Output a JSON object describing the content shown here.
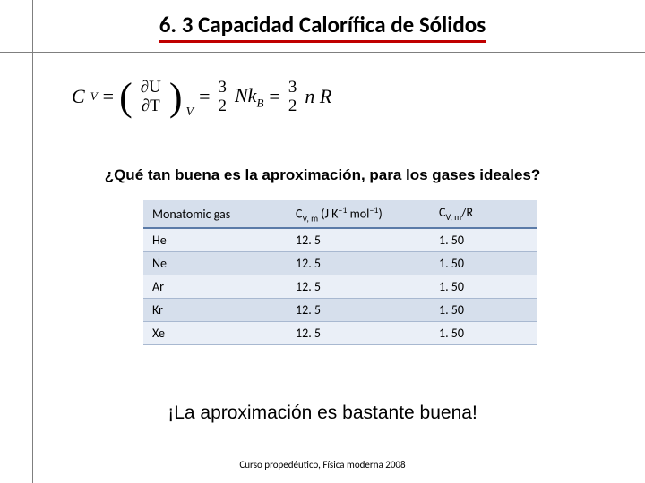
{
  "title": "6. 3 Capacidad Calorífica de Sólidos",
  "question": "¿Qué tan buena es la aproximación, para los gases ideales?",
  "exclamation": "¡La aproximación es bastante buena!",
  "footer": "Curso propedéutico, Física moderna 2008",
  "formula": {
    "lhs_C": "C",
    "lhs_V": "V",
    "partial_U": "∂U",
    "partial_T": "∂T",
    "subscript_V": "V",
    "three": "3",
    "two": "2",
    "N": "N",
    "k": "k",
    "B": "B",
    "n": "n",
    "R": "R"
  },
  "table": {
    "columns": {
      "gas": "Monatomic gas",
      "cvm_prefix": "C",
      "cvm_sub": "V, m",
      "cvm_units_open": " (J K",
      "cvm_sup1": "–1",
      "cvm_mid": " mol",
      "cvm_sup2": "–1",
      "cvm_close": ")",
      "ratio_prefix": "C",
      "ratio_sub": "V, m",
      "ratio_divR": "/R"
    },
    "rows": [
      {
        "gas": "He",
        "cvm": "12. 5",
        "ratio": "1. 50"
      },
      {
        "gas": "Ne",
        "cvm": "12. 5",
        "ratio": "1. 50"
      },
      {
        "gas": "Ar",
        "cvm": "12. 5",
        "ratio": "1. 50"
      },
      {
        "gas": "Kr",
        "cvm": "12. 5",
        "ratio": "1. 50"
      },
      {
        "gas": "Xe",
        "cvm": "12. 5",
        "ratio": "1. 50"
      }
    ],
    "header_bg": "#d6dfec",
    "row_odd_bg": "#eaeff7",
    "row_even_bg": "#d6dfec",
    "border_color": "#a8b8d0",
    "header_border": "#5b7ba8"
  },
  "colors": {
    "title_underline": "#c00000",
    "rule": "#7f7f7f",
    "background": "#ffffff"
  }
}
